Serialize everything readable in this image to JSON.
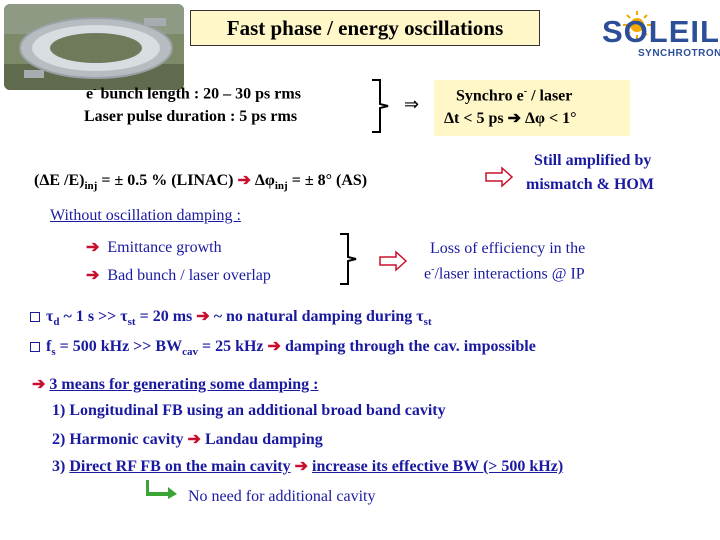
{
  "title": "Fast phase / energy oscillations",
  "logo": {
    "main": "SOLEIL",
    "sub": "SYNCHROTRON"
  },
  "block1": {
    "line1": "e- bunch length : 20 – 30 ps rms",
    "line2": "Laser pulse duration : 5 ps rms",
    "implies": "⇒",
    "result_line1": "Synchro e- / laser",
    "result_line2": "Δt < 5 ps ➔ Δφ < 1°"
  },
  "block2": {
    "text": "(ΔE /E)inj = ± 0.5 % (LINAC) ➔ Δφinj = ± 8° (AS)",
    "result_line1": "Still amplified by",
    "result_line2": "mismatch & HOM"
  },
  "block3": {
    "header": "Without oscillation damping :",
    "bullet1": "Emittance growth",
    "bullet2": "Bad bunch / laser overlap",
    "result_line1": "Loss of efficiency in the",
    "result_line2": "e-/laser interactions @ IP"
  },
  "q_items": [
    "τd ~ 1 s >> τst = 20 ms ➔ ~ no natural damping during τst",
    "fs = 500 kHz >> BWcav = 25 kHz ➔ damping through the cav. impossible"
  ],
  "means": {
    "header": "3 means for generating some damping :",
    "items": [
      "1) Longitudinal FB using an additional broad band cavity",
      "2) Harmonic cavity ➔ Landau damping",
      "3) Direct RF FB on the main cavity ➔ increase its effective BW (> 500 kHz)"
    ],
    "note": "No need for additional cavity"
  },
  "colors": {
    "text_blue": "#1a1aa0",
    "arrow_red": "#c8102e",
    "panel": "#fff7c8",
    "logo_blue": "#2d4f9a"
  }
}
